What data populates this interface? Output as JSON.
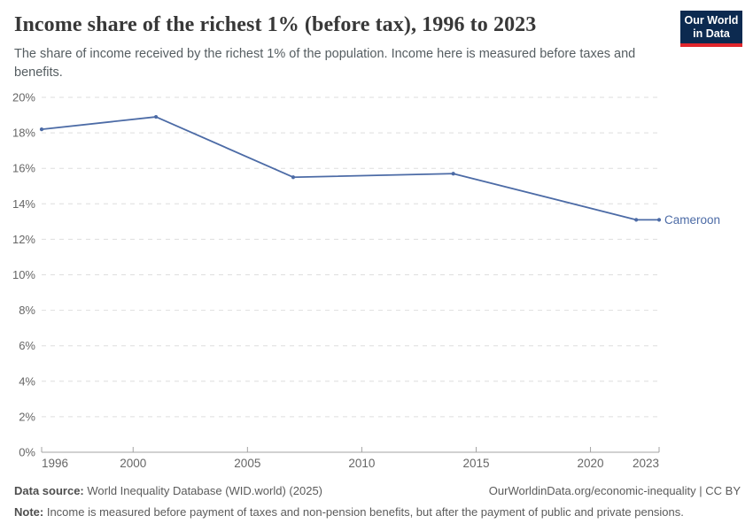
{
  "header": {
    "title": "Income share of the richest 1% (before tax), 1996 to 2023",
    "subtitle": "The share of income received by the richest 1% of the population. Income here is measured before taxes and benefits."
  },
  "logo": {
    "line1": "Our World",
    "line2": "in Data",
    "bg_color": "#0c2a50",
    "accent_color": "#e0262c"
  },
  "chart_data": {
    "type": "line",
    "title": "Income share of the richest 1% (before tax), 1996 to 2023",
    "xlabel": "",
    "ylabel": "",
    "xlim": [
      1996,
      2023
    ],
    "ylim": [
      0,
      20
    ],
    "grid": true,
    "legend_position": "end-of-line",
    "x_ticks": [
      1996,
      2000,
      2005,
      2010,
      2015,
      2020,
      2023
    ],
    "x_tick_labels": [
      "1996",
      "2000",
      "2005",
      "2010",
      "2015",
      "2020",
      "2023"
    ],
    "y_ticks": [
      0,
      2,
      4,
      6,
      8,
      10,
      12,
      14,
      16,
      18,
      20
    ],
    "y_tick_labels": [
      "0%",
      "2%",
      "4%",
      "6%",
      "8%",
      "10%",
      "12%",
      "14%",
      "16%",
      "18%",
      "20%"
    ],
    "series": [
      {
        "name": "Cameroon",
        "color": "#4c6ba6",
        "x": [
          1996,
          2001,
          2007,
          2014,
          2022,
          2023
        ],
        "values": [
          18.2,
          18.9,
          15.5,
          15.7,
          13.1,
          13.1
        ]
      }
    ]
  },
  "colors": {
    "gridline": "#dedede",
    "axis": "#a3a3a3",
    "tick_label": "#666666",
    "line": "#4c6ba6"
  },
  "footer": {
    "datasource_label": "Data source:",
    "datasource_text": " World Inequality Database (WID.world) (2025)",
    "attribution": "OurWorldinData.org/economic-inequality | CC BY",
    "note_label": "Note:",
    "note_text": " Income is measured before payment of taxes and non-pension benefits, but after the payment of public and private pensions."
  }
}
